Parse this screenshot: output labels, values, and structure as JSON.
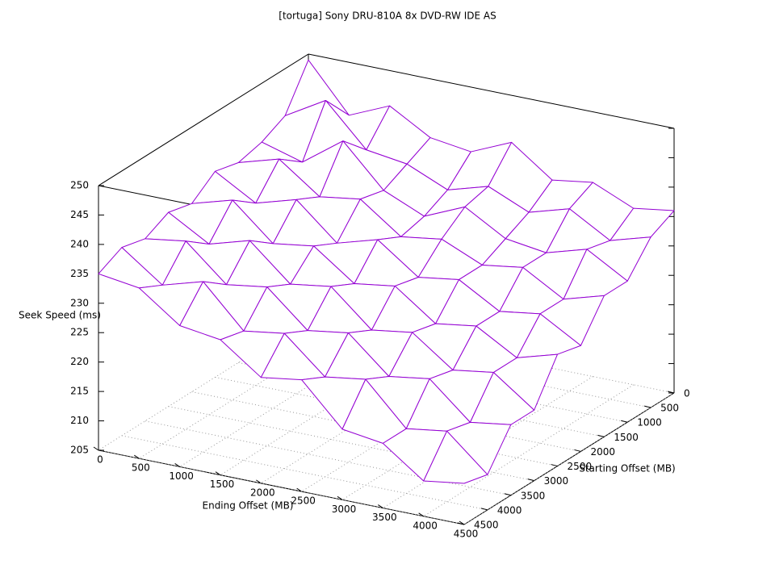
{
  "chart_data": {
    "type": "surface",
    "title": "[tortuga] Sony DRU-810A 8x DVD-RW IDE AS",
    "x_label": "Ending Offset (MB)",
    "y_label": "Starting Offset (MB)",
    "z_label": "Seek Speed (ms)",
    "x": [
      0,
      500,
      1000,
      1500,
      2000,
      2500,
      3000,
      3500,
      4000,
      4500
    ],
    "y": [
      0,
      500,
      1000,
      1500,
      2000,
      2500,
      3000,
      3500,
      4000,
      4500
    ],
    "z": [
      [
        249,
        241,
        244,
        240,
        239,
        242,
        237,
        238,
        235,
        236
      ],
      [
        242,
        246,
        239,
        238,
        235,
        237,
        234,
        236,
        232,
        234
      ],
      [
        240,
        238,
        243,
        236,
        233,
        236,
        232,
        231,
        233,
        229
      ],
      [
        239,
        241,
        236,
        237,
        232,
        233,
        230,
        231,
        227,
        229
      ],
      [
        240,
        236,
        238,
        232,
        234,
        229,
        230,
        226,
        227,
        223
      ],
      [
        237,
        239,
        233,
        234,
        229,
        230,
        225,
        226,
        222,
        224
      ],
      [
        238,
        234,
        236,
        230,
        231,
        225,
        226,
        221,
        222,
        217
      ],
      [
        236,
        237,
        231,
        232,
        226,
        227,
        221,
        222,
        216,
        217
      ],
      [
        237,
        232,
        234,
        227,
        228,
        222,
        223,
        216,
        217,
        211
      ],
      [
        235,
        234,
        229,
        228,
        223,
        224,
        217,
        216,
        211,
        212
      ]
    ],
    "xlim": [
      0,
      4500
    ],
    "ylim": [
      0,
      4500
    ],
    "zlim": [
      205,
      250
    ],
    "xticks": [
      0,
      500,
      1000,
      1500,
      2000,
      2500,
      3000,
      3500,
      4000,
      4500
    ],
    "yticks": [
      0,
      500,
      1000,
      1500,
      2000,
      2500,
      3000,
      3500,
      4000,
      4500
    ],
    "zticks": [
      205,
      210,
      215,
      220,
      225,
      230,
      235,
      240,
      245,
      250
    ],
    "color": "#9400d3",
    "grid": true
  }
}
